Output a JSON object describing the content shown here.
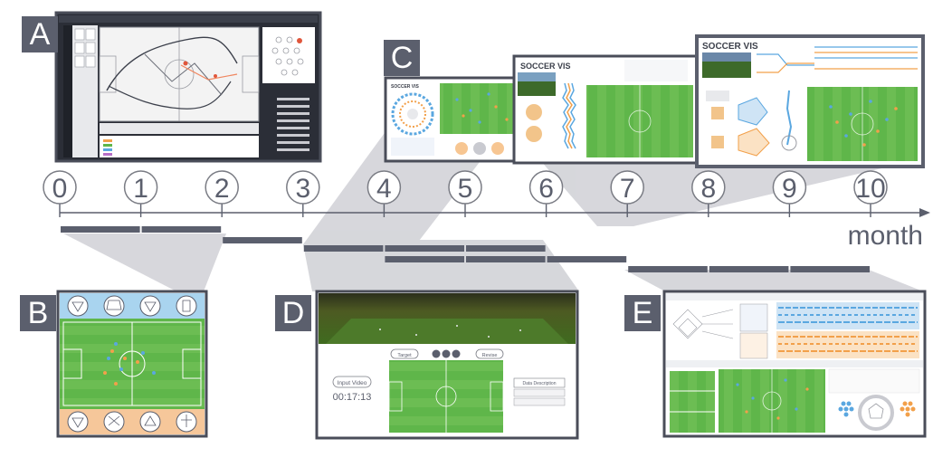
{
  "panels": {
    "a": {
      "label": "A"
    },
    "b": {
      "label": "B"
    },
    "c": {
      "label": "C",
      "app_title": "SOCCER VIS"
    },
    "d": {
      "label": "D",
      "input_video_label": "Input Video",
      "timecode": "00:17:13",
      "target_button": "Target",
      "revise_button": "Revise",
      "data_description": "Data Description"
    },
    "e": {
      "label": "E"
    }
  },
  "timeline": {
    "ticks": [
      "0",
      "1",
      "2",
      "3",
      "4",
      "5",
      "6",
      "7",
      "8",
      "9",
      "10"
    ],
    "unit_label": "month",
    "bars": [
      {
        "row": 0,
        "start": 0,
        "end": 1
      },
      {
        "row": 0,
        "start": 1,
        "end": 2
      },
      {
        "row": 1,
        "start": 2,
        "end": 3
      },
      {
        "row": 2,
        "start": 3,
        "end": 4
      },
      {
        "row": 2,
        "start": 4,
        "end": 5
      },
      {
        "row": 2,
        "start": 5,
        "end": 6
      },
      {
        "row": 3,
        "start": 4,
        "end": 5
      },
      {
        "row": 3,
        "start": 5,
        "end": 6
      },
      {
        "row": 3,
        "start": 6,
        "end": 7
      },
      {
        "row": 4,
        "start": 7,
        "end": 8
      },
      {
        "row": 4,
        "start": 8,
        "end": 9
      },
      {
        "row": 4,
        "start": 9,
        "end": 10
      }
    ]
  },
  "colors": {
    "frame": "#4a4d59",
    "label_bg": "#5b5f6d",
    "pitch_green": "#5fb64a",
    "pitch_light": "#7cc561",
    "accent_blue": "#5aa7e0",
    "accent_orange": "#f2a04a",
    "funnel": "#c9cad0"
  }
}
